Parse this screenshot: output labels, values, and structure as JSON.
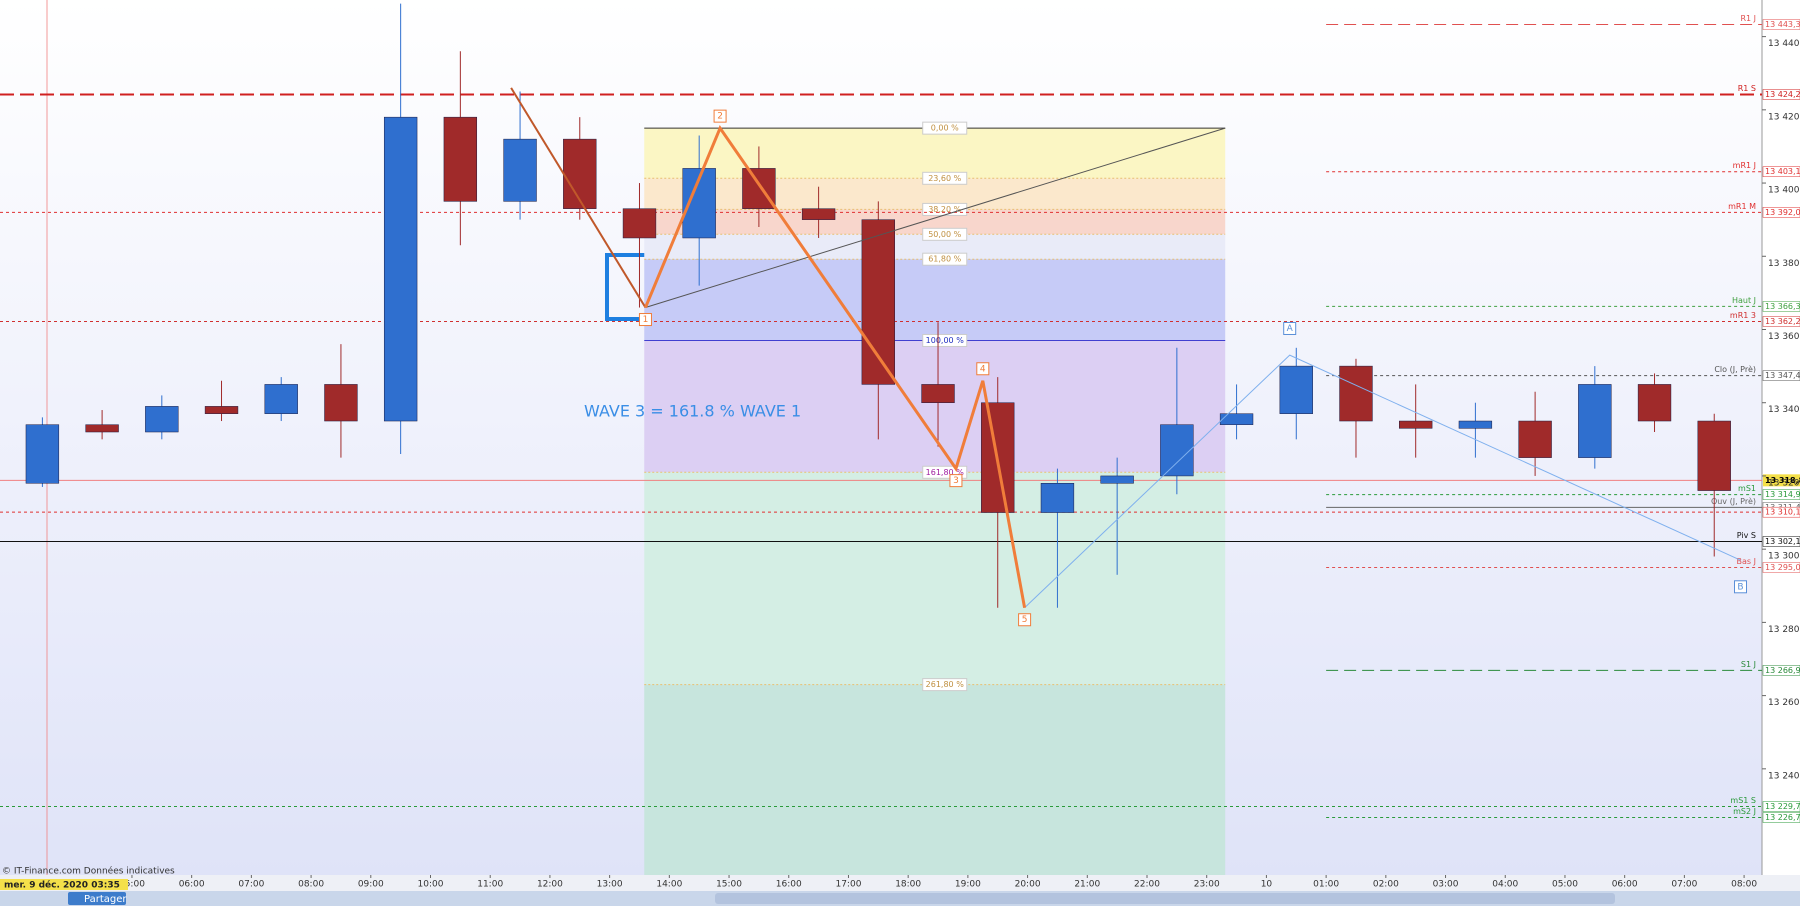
{
  "chart_data": {
    "type": "candlestick",
    "xlim": [
      2.79,
      32.3
    ],
    "ylim": [
      13211,
      13450
    ],
    "xticks": [
      {
        "value": 5,
        "label": "05:00"
      },
      {
        "value": 6,
        "label": "06:00"
      },
      {
        "value": 7,
        "label": "07:00"
      },
      {
        "value": 8,
        "label": "08:00"
      },
      {
        "value": 9,
        "label": "09:00"
      },
      {
        "value": 10,
        "label": "10:00"
      },
      {
        "value": 11,
        "label": "11:00"
      },
      {
        "value": 12,
        "label": "12:00"
      },
      {
        "value": 13,
        "label": "13:00"
      },
      {
        "value": 14,
        "label": "14:00"
      },
      {
        "value": 15,
        "label": "15:00"
      },
      {
        "value": 16,
        "label": "16:00"
      },
      {
        "value": 17,
        "label": "17:00"
      },
      {
        "value": 18,
        "label": "18:00"
      },
      {
        "value": 19,
        "label": "19:00"
      },
      {
        "value": 20,
        "label": "20:00"
      },
      {
        "value": 21,
        "label": "21:00"
      },
      {
        "value": 22,
        "label": "22:00"
      },
      {
        "value": 23,
        "label": "23:00"
      },
      {
        "value": 24,
        "label": "10"
      },
      {
        "value": 25,
        "label": "01:00"
      },
      {
        "value": 26,
        "label": "02:00"
      },
      {
        "value": 27,
        "label": "03:00"
      },
      {
        "value": 28,
        "label": "04:00"
      },
      {
        "value": 29,
        "label": "05:00"
      },
      {
        "value": 30,
        "label": "06:00"
      },
      {
        "value": 31,
        "label": "07:00"
      },
      {
        "value": 32,
        "label": "08:00"
      }
    ],
    "yticks": [
      {
        "value": 13240,
        "label": "13 240"
      },
      {
        "value": 13260,
        "label": "13 260"
      },
      {
        "value": 13280,
        "label": "13 280"
      },
      {
        "value": 13300,
        "label": "13 300"
      },
      {
        "value": 13320,
        "label": "13 320"
      },
      {
        "value": 13340,
        "label": "13 340"
      },
      {
        "value": 13360,
        "label": "13 360"
      },
      {
        "value": 13380,
        "label": "13 380"
      },
      {
        "value": 13400,
        "label": "13 400"
      },
      {
        "value": 13420,
        "label": "13 420"
      },
      {
        "value": 13440,
        "label": "13 440"
      }
    ],
    "up_color": "#2f6fcf",
    "down_color": "#a02a2a",
    "candles": [
      {
        "x": 3.5,
        "o": 13318,
        "h": 13336,
        "l": 13317,
        "c": 13334
      },
      {
        "x": 4.5,
        "o": 13334,
        "h": 13338,
        "l": 13330,
        "c": 13332
      },
      {
        "x": 5.5,
        "o": 13332,
        "h": 13342,
        "l": 13330,
        "c": 13339
      },
      {
        "x": 6.5,
        "o": 13339,
        "h": 13346,
        "l": 13335,
        "c": 13337
      },
      {
        "x": 7.5,
        "o": 13337,
        "h": 13347,
        "l": 13335,
        "c": 13345
      },
      {
        "x": 8.5,
        "o": 13345,
        "h": 13356,
        "l": 13325,
        "c": 13335
      },
      {
        "x": 9.5,
        "o": 13335,
        "h": 13449,
        "l": 13326,
        "c": 13418
      },
      {
        "x": 10.5,
        "o": 13418,
        "h": 13436,
        "l": 13383,
        "c": 13395
      },
      {
        "x": 11.5,
        "o": 13395,
        "h": 13425,
        "l": 13390,
        "c": 13412
      },
      {
        "x": 12.5,
        "o": 13412,
        "h": 13418,
        "l": 13390,
        "c": 13393
      },
      {
        "x": 13.5,
        "o": 13393,
        "h": 13400,
        "l": 13366,
        "c": 13385
      },
      {
        "x": 14.5,
        "o": 13385,
        "h": 13413,
        "l": 13372,
        "c": 13404
      },
      {
        "x": 15.5,
        "o": 13404,
        "h": 13410,
        "l": 13388,
        "c": 13393
      },
      {
        "x": 16.5,
        "o": 13393,
        "h": 13399,
        "l": 13385,
        "c": 13390
      },
      {
        "x": 17.5,
        "o": 13390,
        "h": 13395,
        "l": 13330,
        "c": 13345
      },
      {
        "x": 18.5,
        "o": 13345,
        "h": 13362,
        "l": 13328,
        "c": 13340
      },
      {
        "x": 19.5,
        "o": 13340,
        "h": 13347,
        "l": 13284,
        "c": 13310
      },
      {
        "x": 20.5,
        "o": 13310,
        "h": 13322,
        "l": 13284,
        "c": 13318
      },
      {
        "x": 21.5,
        "o": 13318,
        "h": 13325,
        "l": 13293,
        "c": 13320
      },
      {
        "x": 22.5,
        "o": 13320,
        "h": 13355,
        "l": 13315,
        "c": 13334
      },
      {
        "x": 23.5,
        "o": 13334,
        "h": 13345,
        "l": 13330,
        "c": 13337
      },
      {
        "x": 24.5,
        "o": 13337,
        "h": 13355,
        "l": 13330,
        "c": 13350
      },
      {
        "x": 25.5,
        "o": 13350,
        "h": 13352,
        "l": 13325,
        "c": 13335
      },
      {
        "x": 26.5,
        "o": 13335,
        "h": 13345,
        "l": 13325,
        "c": 13333
      },
      {
        "x": 27.5,
        "o": 13333,
        "h": 13340,
        "l": 13325,
        "c": 13335
      },
      {
        "x": 28.5,
        "o": 13335,
        "h": 13343,
        "l": 13320,
        "c": 13325
      },
      {
        "x": 29.5,
        "o": 13325,
        "h": 13350,
        "l": 13322,
        "c": 13345
      },
      {
        "x": 30.5,
        "o": 13345,
        "h": 13348,
        "l": 13332,
        "c": 13335
      },
      {
        "x": 31.5,
        "o": 13335,
        "h": 13337,
        "l": 13298,
        "c": 13316
      }
    ],
    "fibonacci": {
      "x": [
        13.58,
        23.31
      ],
      "levels": [
        {
          "label": "0,00 %",
          "value": 13415,
          "color": "#fbf6c4"
        },
        {
          "label": "23,60 %",
          "value": 13401.3,
          "color": "#fbe8cc"
        },
        {
          "label": "38,20 %",
          "value": 13392.8,
          "color": "#f8d6cc"
        },
        {
          "label": "50,00 %",
          "value": 13386,
          "color": "#e9ebf8"
        },
        {
          "label": "61,80 %",
          "value": 13379.2,
          "color": "#c6cbf7"
        },
        {
          "label": "100,00 %",
          "value": 13357,
          "color": "#dccff3"
        },
        {
          "label": "161,80 %",
          "value": 13321,
          "color": "#d4eee4"
        },
        {
          "label": "261,80 %",
          "value": 13263,
          "color": "#c7e5dd"
        }
      ]
    },
    "waves": {
      "color": "#f07d3a",
      "points": [
        {
          "label": "1",
          "x": 13.6,
          "y": 13366
        },
        {
          "label": "2",
          "x": 14.85,
          "y": 13415
        },
        {
          "label": "3",
          "x": 18.8,
          "y": 13322
        },
        {
          "label": "4",
          "x": 19.25,
          "y": 13346
        },
        {
          "label": "5",
          "x": 19.95,
          "y": 13284
        }
      ]
    },
    "trend_lines": [
      {
        "color": "#c0582a",
        "x": [
          11.35,
          13.6
        ],
        "y": [
          13426,
          13366
        ]
      },
      {
        "color": "#555555",
        "x": [
          13.6,
          23.31
        ],
        "y": [
          13366,
          13415
        ]
      },
      {
        "color": "#7fb0ee",
        "x": [
          19.95,
          24.39,
          31.94
        ],
        "y": [
          13284,
          13353,
          13297
        ]
      }
    ],
    "points": [
      {
        "label": "A",
        "x": 24.39,
        "y": 13357
      },
      {
        "label": "B",
        "x": 31.94,
        "y": 13293
      }
    ],
    "annotation": "WAVE 3 = 161.8 % WAVE 1",
    "levels": [
      {
        "name": "R1 J",
        "value": 13443.3,
        "value_label": "13 443,3",
        "color": "#e05050",
        "style": "dash",
        "span": "day"
      },
      {
        "name": "R1 S",
        "value": 13424.2,
        "value_label": "13 424,2",
        "color": "#d02020",
        "style": "bold",
        "span": "full"
      },
      {
        "name": "mR1 J",
        "value": 13403.1,
        "value_label": "13 403,1",
        "color": "#e03030",
        "style": "dot",
        "span": "day"
      },
      {
        "name": "mR1 M",
        "value": 13392.0,
        "value_label": "13 392,0",
        "color": "#e03030",
        "style": "dot",
        "span": "full"
      },
      {
        "name": "Haut J",
        "value": 13366.3,
        "value_label": "13 366,3",
        "color": "#40a040",
        "style": "dot",
        "span": "day"
      },
      {
        "name": "mR1 3",
        "value": 13362.2,
        "value_label": "13 362,2",
        "color": "#d03030",
        "style": "dot",
        "span": "full"
      },
      {
        "name": "Clo (J, Prè)",
        "value": 13347.4,
        "value_label": "13 347,4",
        "color": "#555555",
        "style": "dot",
        "span": "day"
      },
      {
        "name": "mS1",
        "value": 13314.9,
        "value_label": "13 314,9",
        "color": "#2a9a3a",
        "style": "dot",
        "span": "day"
      },
      {
        "name": "Ouv (J, Prè)",
        "value": 13311.4,
        "value_label": "13 311,4",
        "color": "#666666",
        "style": "solid",
        "span": "day"
      },
      {
        "value": 13310.1,
        "value_label": "13 310,1",
        "color": "#e03030",
        "style": "dot",
        "span": "full"
      },
      {
        "name": "Piv S",
        "value": 13302.1,
        "value_label": "13 302,1",
        "color": "#111111",
        "style": "solid",
        "span": "full"
      },
      {
        "name": "Bas J",
        "value": 13295.0,
        "value_label": "13 295,0",
        "color": "#e05050",
        "style": "dot",
        "span": "day"
      },
      {
        "name": "S1 J",
        "value": 13266.9,
        "value_label": "13 266,9",
        "color": "#2a8a3a",
        "style": "dash",
        "span": "day"
      },
      {
        "name": "mS1 S",
        "value": 13229.7,
        "value_label": "13 229,7",
        "color": "#2a9a3a",
        "style": "dot",
        "span": "full"
      },
      {
        "name": "mS2 J",
        "value": 13226.7,
        "value_label": "13 226,7",
        "color": "#2a9a3a",
        "style": "dot",
        "span": "day"
      }
    ],
    "last_price": {
      "value": 13318.8,
      "label": "13 318,8"
    },
    "source_note": "© IT-Finance.com Données indicatives",
    "date_label": "mer. 9 déc. 2020 03:35",
    "toolbar_label": "Partager"
  }
}
